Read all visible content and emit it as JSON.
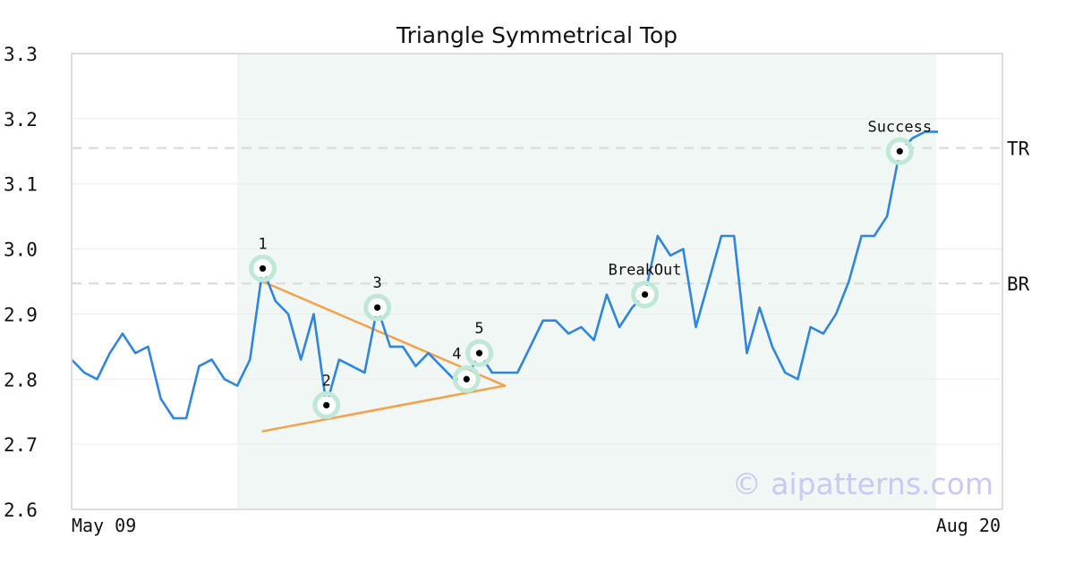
{
  "chart_data": {
    "type": "line",
    "title": "Triangle Symmetrical Top",
    "xlabel": "",
    "ylabel": "",
    "ylim": [
      2.6,
      3.3
    ],
    "yticks": [
      "2.6",
      "2.7",
      "2.8",
      "2.9",
      "3.0",
      "3.1",
      "3.2",
      "3.3"
    ],
    "xtick_labels": [
      "May 09",
      "Aug 20"
    ],
    "grid": "horizontal",
    "watermark": "© aipatterns.com",
    "series": [
      {
        "color": "#2e86de",
        "values": [
          2.83,
          2.81,
          2.8,
          2.84,
          2.87,
          2.84,
          2.85,
          2.77,
          2.74,
          2.74,
          2.82,
          2.83,
          2.8,
          2.79,
          2.83,
          2.97,
          2.92,
          2.9,
          2.83,
          2.9,
          2.76,
          2.83,
          2.82,
          2.81,
          2.91,
          2.85,
          2.85,
          2.82,
          2.84,
          2.82,
          2.8,
          2.8,
          2.84,
          2.81,
          2.81,
          2.81,
          2.85,
          2.89,
          2.89,
          2.87,
          2.88,
          2.86,
          2.93,
          2.88,
          2.91,
          2.93,
          3.02,
          2.99,
          3.0,
          2.88,
          2.95,
          3.02,
          3.02,
          2.84,
          2.91,
          2.85,
          2.81,
          2.8,
          2.88,
          2.87,
          2.9,
          2.95,
          3.02,
          3.02,
          3.05,
          3.15,
          3.17,
          3.18,
          3.18
        ]
      }
    ],
    "pattern_region": {
      "start_index": 13,
      "end_index": 67,
      "color": "#f0f7f4"
    },
    "reference_lines": [
      {
        "label": "TR",
        "value": 3.155
      },
      {
        "label": "BR",
        "value": 2.947
      }
    ],
    "trend_lines": [
      {
        "from": [
          15,
          2.95
        ],
        "to": [
          34,
          2.79
        ],
        "color": "#f5a04a"
      },
      {
        "from": [
          15,
          2.72
        ],
        "to": [
          34,
          2.79
        ],
        "color": "#f5a04a"
      }
    ],
    "points": [
      {
        "label": "1",
        "index": 15,
        "value": 2.97,
        "label_pos": "above"
      },
      {
        "label": "2",
        "index": 20,
        "value": 2.76,
        "label_pos": "above"
      },
      {
        "label": "3",
        "index": 24,
        "value": 2.91,
        "label_pos": "above"
      },
      {
        "label": "4",
        "index": 31,
        "value": 2.8,
        "label_pos": "above-left"
      },
      {
        "label": "5",
        "index": 32,
        "value": 2.84,
        "label_pos": "above"
      },
      {
        "label": "BreakOut",
        "index": 45,
        "value": 2.93,
        "label_pos": "above"
      },
      {
        "label": "Success",
        "index": 65,
        "value": 3.15,
        "label_pos": "above"
      }
    ]
  }
}
